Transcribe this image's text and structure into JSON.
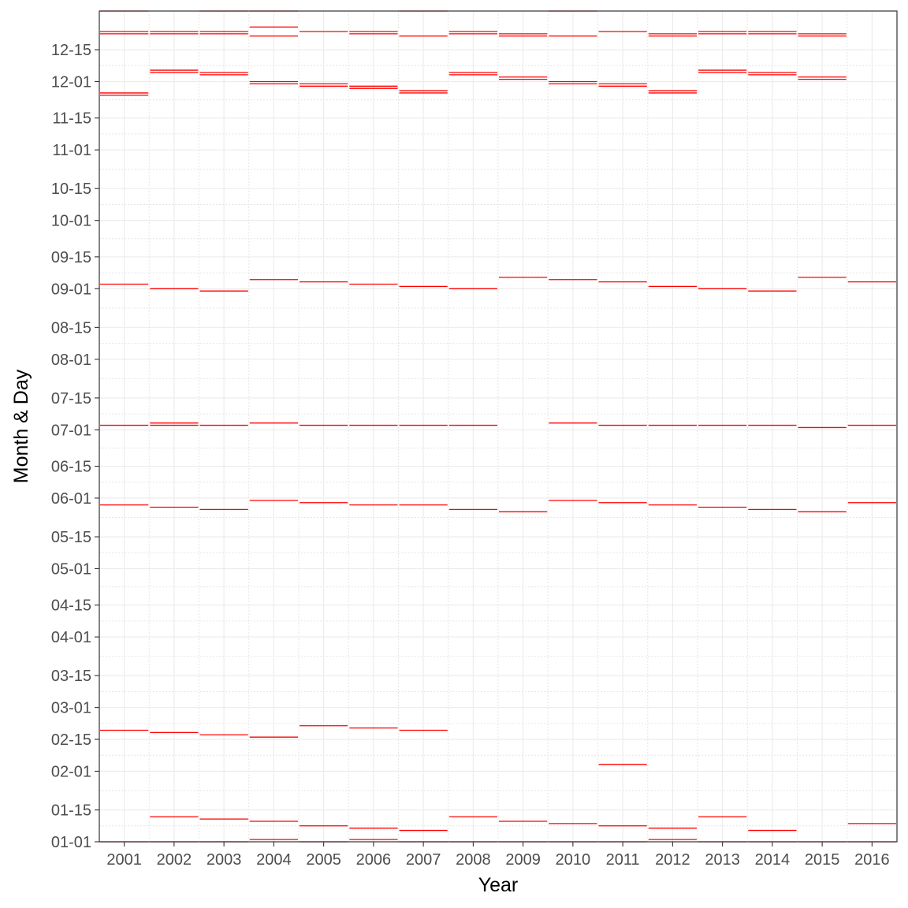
{
  "chart_data": {
    "type": "scatter",
    "mark": "horizontal segment per year",
    "xlabel": "Year",
    "ylabel": "Month & Day",
    "x_categories": [
      "2001",
      "2002",
      "2003",
      "2004",
      "2005",
      "2006",
      "2007",
      "2008",
      "2009",
      "2010",
      "2011",
      "2012",
      "2013",
      "2014",
      "2015",
      "2016"
    ],
    "y_ticks": [
      "01-01",
      "01-15",
      "02-01",
      "02-15",
      "03-01",
      "03-15",
      "04-01",
      "04-15",
      "05-01",
      "05-15",
      "06-01",
      "06-15",
      "07-01",
      "07-15",
      "08-01",
      "08-15",
      "09-01",
      "09-15",
      "10-01",
      "10-15",
      "11-01",
      "11-15",
      "12-01",
      "12-15"
    ],
    "y_tick_days": [
      1,
      15,
      32,
      46,
      60,
      74,
      91,
      105,
      121,
      135,
      152,
      166,
      182,
      196,
      213,
      227,
      244,
      258,
      274,
      288,
      305,
      319,
      335,
      349
    ],
    "ylim_days": [
      1,
      366
    ],
    "y_unit": "day of year (01-01 = 1)",
    "segment_color": "#ff0000",
    "grid": true,
    "legend": "none",
    "points": [
      {
        "year": "2001",
        "days": [
          1,
          50,
          149,
          184,
          246,
          329,
          330,
          356,
          357,
          366
        ]
      },
      {
        "year": "2002",
        "days": [
          1,
          12,
          49,
          148,
          184,
          185,
          244,
          339,
          340,
          356,
          357
        ]
      },
      {
        "year": "2003",
        "days": [
          1,
          11,
          48,
          147,
          184,
          243,
          338,
          339,
          356,
          357,
          366
        ]
      },
      {
        "year": "2004",
        "days": [
          2,
          10,
          47,
          151,
          185,
          248,
          334,
          335,
          355,
          359,
          366
        ]
      },
      {
        "year": "2005",
        "days": [
          1,
          8,
          52,
          150,
          184,
          247,
          333,
          334,
          357
        ]
      },
      {
        "year": "2006",
        "days": [
          2,
          7,
          51,
          149,
          184,
          246,
          332,
          333,
          356,
          357
        ]
      },
      {
        "year": "2007",
        "days": [
          1,
          6,
          50,
          149,
          184,
          245,
          330,
          331,
          355,
          366
        ]
      },
      {
        "year": "2008",
        "days": [
          1,
          12,
          147,
          184,
          244,
          338,
          339,
          356,
          357
        ]
      },
      {
        "year": "2009",
        "days": [
          1,
          10,
          146,
          249,
          336,
          337,
          355,
          356
        ]
      },
      {
        "year": "2010",
        "days": [
          1,
          9,
          151,
          185,
          248,
          334,
          335,
          355,
          366
        ]
      },
      {
        "year": "2011",
        "days": [
          1,
          8,
          35,
          150,
          184,
          247,
          333,
          334,
          357
        ]
      },
      {
        "year": "2012",
        "days": [
          2,
          7,
          149,
          184,
          245,
          330,
          331,
          355,
          356
        ]
      },
      {
        "year": "2013",
        "days": [
          1,
          12,
          148,
          184,
          244,
          339,
          340,
          356,
          357
        ]
      },
      {
        "year": "2014",
        "days": [
          1,
          6,
          147,
          184,
          243,
          338,
          339,
          356,
          357
        ]
      },
      {
        "year": "2015",
        "days": [
          1,
          146,
          183,
          249,
          336,
          337,
          355,
          356
        ]
      },
      {
        "year": "2016",
        "days": [
          1,
          9,
          150,
          184,
          247
        ]
      }
    ]
  }
}
